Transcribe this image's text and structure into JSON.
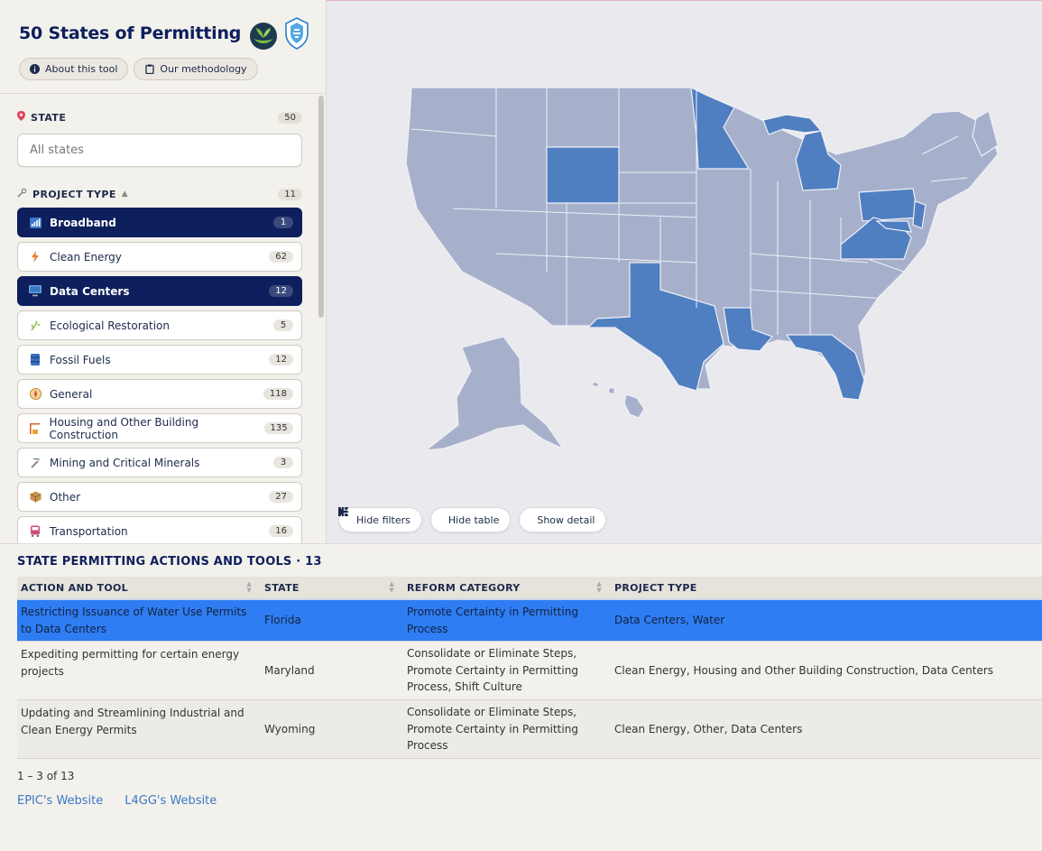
{
  "app": {
    "title": "50 States of Permitting",
    "about_label": "About this tool",
    "methodology_label": "Our methodology"
  },
  "filters": {
    "state": {
      "label": "STATE",
      "count": "50",
      "placeholder": "All states"
    },
    "project_type": {
      "label": "PROJECT TYPE",
      "count": "11",
      "items": [
        {
          "label": "Broadband",
          "count": "1",
          "active": true,
          "icon": "signal-bars-icon"
        },
        {
          "label": "Clean Energy",
          "count": "62",
          "active": false,
          "icon": "lightning-icon"
        },
        {
          "label": "Data Centers",
          "count": "12",
          "active": true,
          "icon": "monitor-icon"
        },
        {
          "label": "Ecological Restoration",
          "count": "5",
          "active": false,
          "icon": "plant-icon"
        },
        {
          "label": "Fossil Fuels",
          "count": "12",
          "active": false,
          "icon": "barrel-icon"
        },
        {
          "label": "General",
          "count": "118",
          "active": false,
          "icon": "compass-icon"
        },
        {
          "label": "Housing and Other Building Construction",
          "count": "135",
          "active": false,
          "icon": "crane-icon"
        },
        {
          "label": "Mining and Critical Minerals",
          "count": "3",
          "active": false,
          "icon": "pickaxe-icon"
        },
        {
          "label": "Other",
          "count": "27",
          "active": false,
          "icon": "box-icon"
        },
        {
          "label": "Transportation",
          "count": "16",
          "active": false,
          "icon": "train-icon"
        }
      ]
    }
  },
  "map": {
    "highlight_color": "#4f7fc1",
    "base_color": "#a7b0cb",
    "buttons": {
      "hide_filters": "Hide filters",
      "hide_table": "Hide table",
      "show_detail": "Show detail"
    }
  },
  "table": {
    "title": "STATE PERMITTING ACTIONS AND TOOLS · 13",
    "headers": [
      "ACTION AND TOOL",
      "STATE",
      "REFORM CATEGORY",
      "PROJECT TYPE"
    ],
    "rows": [
      {
        "action": "Restricting Issuance of Water Use Permits to Data Centers",
        "state": "Florida",
        "reform": "Promote Certainty in Permitting Process",
        "ptype": "Data Centers, Water"
      },
      {
        "action": "Expediting permitting for certain energy projects",
        "state": "Maryland",
        "reform": "Consolidate or Eliminate Steps, Promote Certainty in Permitting Process, Shift Culture",
        "ptype": "Clean Energy, Housing and Other Building Construction, Data Centers"
      },
      {
        "action": "Updating and Streamlining Industrial and Clean Energy Permits",
        "state": "Wyoming",
        "reform": "Consolidate or Eliminate Steps, Promote Certainty in Permitting Process",
        "ptype": "Clean Energy, Other, Data Centers"
      }
    ],
    "pagination": "1 – 3 of 13"
  },
  "footer": {
    "epic_link": "EPIC's Website",
    "l4gg_link": "L4GG's Website"
  }
}
